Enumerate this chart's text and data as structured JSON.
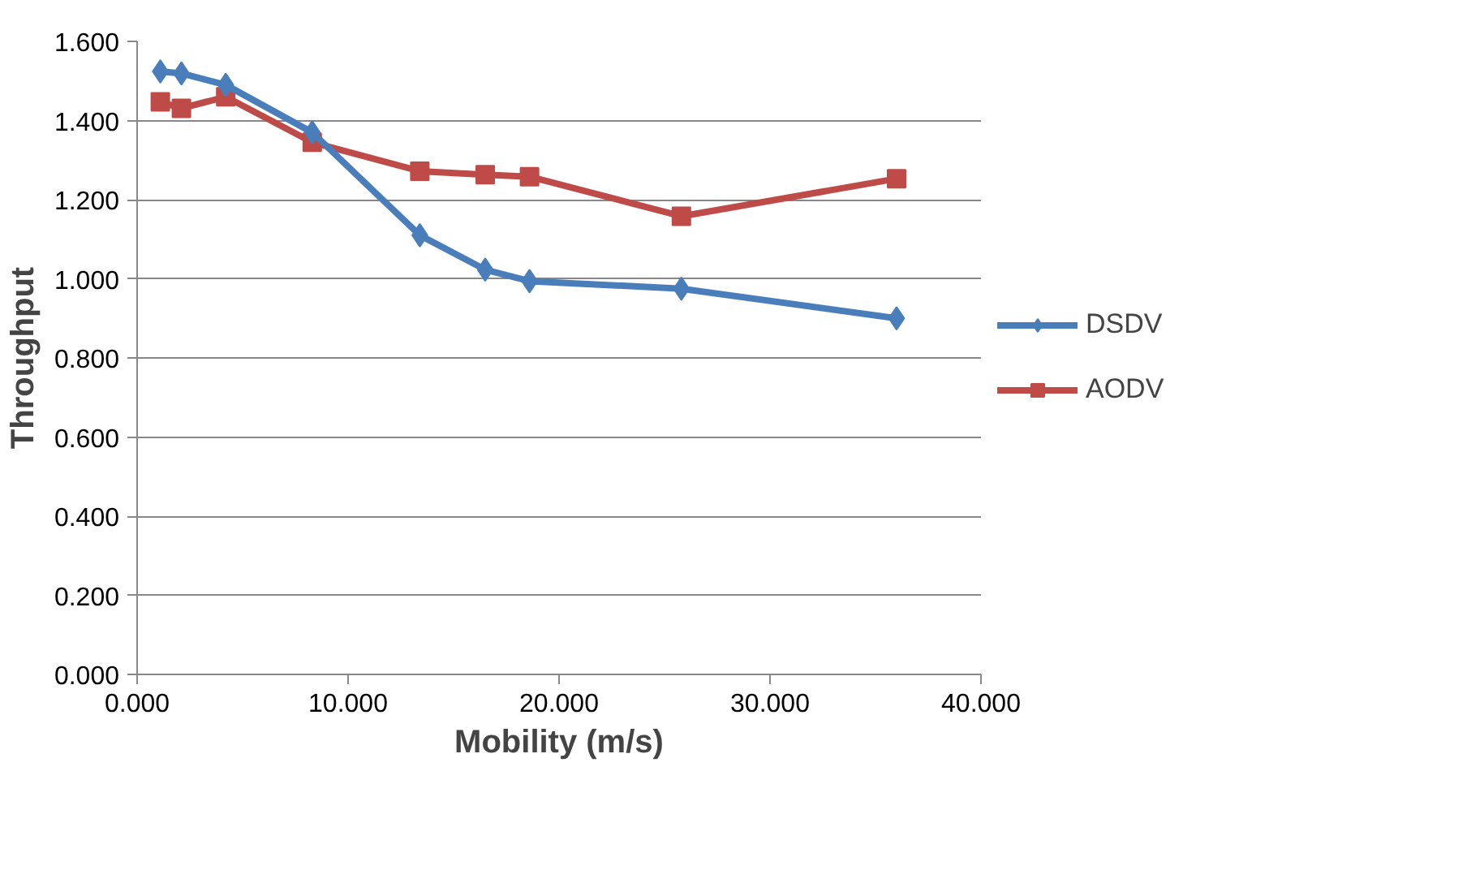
{
  "chart_data": {
    "type": "line",
    "xlabel": "Mobility (m/s)",
    "ylabel": "Throughput",
    "xlim": [
      0,
      40
    ],
    "ylim": [
      0,
      1.6
    ],
    "xticks": [
      {
        "value": 0,
        "label": "0.000"
      },
      {
        "value": 10,
        "label": "10.000"
      },
      {
        "value": 20,
        "label": "20.000"
      },
      {
        "value": 30,
        "label": "30.000"
      },
      {
        "value": 40,
        "label": "40.000"
      }
    ],
    "yticks": [
      {
        "value": 0,
        "label": "0.000"
      },
      {
        "value": 0.2,
        "label": "0.200"
      },
      {
        "value": 0.4,
        "label": "0.400"
      },
      {
        "value": 0.6,
        "label": "0.600"
      },
      {
        "value": 0.8,
        "label": "0.800"
      },
      {
        "value": 1.0,
        "label": "1.000"
      },
      {
        "value": 1.2,
        "label": "1.200"
      },
      {
        "value": 1.4,
        "label": "1.400"
      },
      {
        "value": 1.6,
        "label": "1.600"
      }
    ],
    "grid": "y",
    "legend": "right",
    "series": [
      {
        "name": "DSDV",
        "color": "#4a7ebb",
        "marker": "diamond",
        "x": [
          1.1,
          2.1,
          4.2,
          8.3,
          13.4,
          16.5,
          18.6,
          25.8,
          36
        ],
        "values": [
          1.524,
          1.519,
          1.49,
          1.37,
          1.11,
          1.023,
          0.994,
          0.975,
          0.9
        ]
      },
      {
        "name": "AODV",
        "color": "#be4b48",
        "marker": "square",
        "x": [
          1.1,
          2.1,
          4.2,
          8.3,
          13.4,
          16.5,
          18.6,
          25.8,
          36
        ],
        "values": [
          1.447,
          1.431,
          1.46,
          1.345,
          1.272,
          1.263,
          1.258,
          1.158,
          1.253
        ]
      }
    ]
  }
}
